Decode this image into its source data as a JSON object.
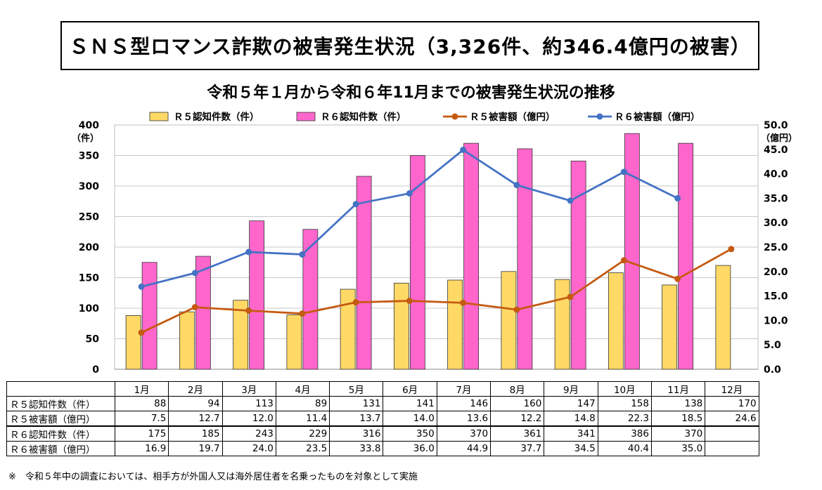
{
  "title": "ＳＮＳ型ロマンス詐欺の被害発生状況（3,326件、約346.4億円の被害）",
  "chart_data": {
    "type": "bar",
    "title": "令和５年１月から令和６年11月までの被害発生状況の推移",
    "categories": [
      "1月",
      "2月",
      "3月",
      "4月",
      "5月",
      "6月",
      "7月",
      "8月",
      "9月",
      "10月",
      "11月",
      "12月"
    ],
    "series": [
      {
        "name": "Ｒ５認知件数（件）",
        "type": "bar",
        "axis": "left",
        "color": "#FFD966",
        "values": [
          88,
          94,
          113,
          89,
          131,
          141,
          146,
          160,
          147,
          158,
          138,
          170
        ]
      },
      {
        "name": "Ｒ６認知件数（件）",
        "type": "bar",
        "axis": "left",
        "color": "#FF66CC",
        "values": [
          175,
          185,
          243,
          229,
          316,
          350,
          370,
          361,
          341,
          386,
          370,
          null
        ]
      },
      {
        "name": "Ｒ５被害額（億円）",
        "type": "line",
        "axis": "right",
        "color": "#C55A11",
        "values": [
          7.5,
          12.7,
          12.0,
          11.4,
          13.7,
          14.0,
          13.6,
          12.2,
          14.8,
          22.3,
          18.5,
          24.6
        ]
      },
      {
        "name": "Ｒ６被害額（億円）",
        "type": "line",
        "axis": "right",
        "color": "#4472C4",
        "values": [
          16.9,
          19.7,
          24.0,
          23.5,
          33.8,
          36.0,
          44.9,
          37.7,
          34.5,
          40.4,
          35.0,
          null
        ]
      }
    ],
    "legend": [
      "Ｒ５認知件数（件）",
      "Ｒ６認知件数（件）",
      "Ｒ５被害額（億円）",
      "Ｒ６被害額（億円）"
    ],
    "legend_position": "top",
    "y_left": {
      "unit": "（件）",
      "ylim": [
        0,
        400
      ],
      "ticks": [
        "0",
        "50",
        "100",
        "150",
        "200",
        "250",
        "300",
        "350",
        "400"
      ]
    },
    "y_right": {
      "unit": "（億円）",
      "ylim": [
        0,
        50
      ],
      "ticks": [
        "0.0",
        "5.0",
        "10.0",
        "15.0",
        "20.0",
        "25.0",
        "30.0",
        "35.0",
        "40.0",
        "45.0",
        "50.0"
      ]
    },
    "grid": true
  },
  "table": {
    "rows": [
      {
        "label": "Ｒ５認知件数（件）",
        "values": [
          "88",
          "94",
          "113",
          "89",
          "131",
          "141",
          "146",
          "160",
          "147",
          "158",
          "138",
          "170"
        ]
      },
      {
        "label": "Ｒ５被害額（億円）",
        "values": [
          "7.5",
          "12.7",
          "12.0",
          "11.4",
          "13.7",
          "14.0",
          "13.6",
          "12.2",
          "14.8",
          "22.3",
          "18.5",
          "24.6"
        ]
      },
      {
        "label": "Ｒ６認知件数（件）",
        "values": [
          "175",
          "185",
          "243",
          "229",
          "316",
          "350",
          "370",
          "361",
          "341",
          "386",
          "370",
          ""
        ]
      },
      {
        "label": "Ｒ６被害額（億円）",
        "values": [
          "16.9",
          "19.7",
          "24.0",
          "23.5",
          "33.8",
          "36.0",
          "44.9",
          "37.7",
          "34.5",
          "40.4",
          "35.0",
          ""
        ]
      }
    ]
  },
  "footnote": "※　令和５年中の調査においては、相手方が外国人又は海外居住者を名乗ったものを対象として実施"
}
